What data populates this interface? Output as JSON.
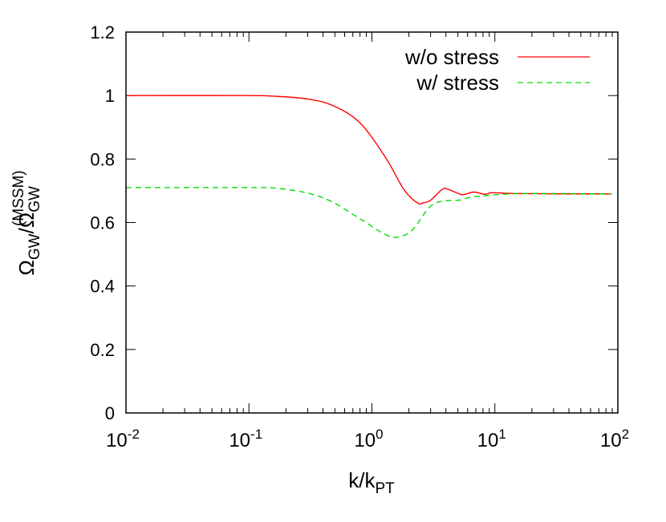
{
  "chart_data": {
    "type": "line",
    "xscale": "log",
    "xlim": [
      0.01,
      100
    ],
    "ylim": [
      0,
      1.2
    ],
    "xlabel": {
      "base": "k/k",
      "sub": "PT"
    },
    "ylabel": {
      "a": "Ω",
      "a_sub": "GW",
      "slash": "/Ω",
      "b_sub": "GW",
      "b_sup": "(MSSM)"
    },
    "xticks": [
      {
        "v": 0.01,
        "base": "10",
        "exp": "-2"
      },
      {
        "v": 0.1,
        "base": "10",
        "exp": "-1"
      },
      {
        "v": 1,
        "base": "10",
        "exp": "0"
      },
      {
        "v": 10,
        "base": "10",
        "exp": "1"
      },
      {
        "v": 100,
        "base": "10",
        "exp": "2"
      }
    ],
    "yticks": [
      "0",
      "0.2",
      "0.4",
      "0.6",
      "0.8",
      "1",
      "1.2"
    ],
    "legend_position": "top-right",
    "series": [
      {
        "name": "w/o stress",
        "color": "#ff0000",
        "dash": "solid",
        "x": [
          0.01,
          0.1,
          0.158,
          0.29,
          0.47,
          0.79,
          1.29,
          1.82,
          2.34,
          2.63,
          3.02,
          3.72,
          4.07,
          5.25,
          5.75,
          6.76,
          8.32,
          9.55,
          15.8,
          89
        ],
        "y": [
          1.0,
          1.0,
          0.998,
          0.99,
          0.97,
          0.916,
          0.805,
          0.704,
          0.662,
          0.662,
          0.671,
          0.704,
          0.706,
          0.689,
          0.689,
          0.696,
          0.689,
          0.694,
          0.691,
          0.69
        ]
      },
      {
        "name": "w/ stress",
        "color": "#00dd00",
        "dash": "dashed",
        "x": [
          0.01,
          0.1,
          0.158,
          0.29,
          0.47,
          0.79,
          1.29,
          1.62,
          2.14,
          3.16,
          5.25,
          6.76,
          15.8,
          89
        ],
        "y": [
          0.71,
          0.71,
          0.709,
          0.694,
          0.666,
          0.613,
          0.562,
          0.554,
          0.577,
          0.658,
          0.671,
          0.681,
          0.691,
          0.69
        ]
      }
    ]
  }
}
